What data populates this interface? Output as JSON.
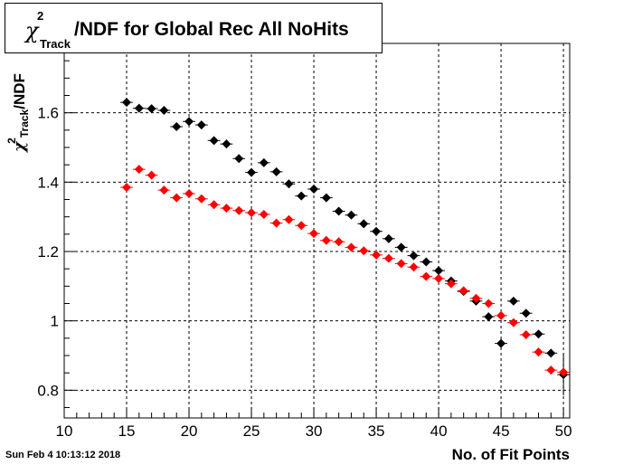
{
  "title": {
    "prefix_symbol": "χ",
    "superscript": "2",
    "subscript": "Track",
    "text": "/NDF for Global Rec All NoHits"
  },
  "axes": {
    "xlabel": "No. of Fit Points",
    "ylabel_symbol": "χ",
    "ylabel_superscript": "2",
    "ylabel_subscript": "Track",
    "ylabel_suffix": "/NDF"
  },
  "timestamp": "Sun Feb  4 10:13:12 2018",
  "colors": {
    "series_black": "#000000",
    "series_red": "#ff0000",
    "frame": "#000000",
    "grid": "#000000"
  },
  "chart_data": {
    "type": "scatter",
    "xlim": [
      10,
      50.5
    ],
    "ylim": [
      0.72,
      1.8
    ],
    "xticks": [
      10,
      15,
      20,
      25,
      30,
      35,
      40,
      45,
      50
    ],
    "yticks": [
      0.8,
      1,
      1.2,
      1.4,
      1.6
    ],
    "ytick_labels": [
      "0.8",
      "1",
      "1.2",
      "1.4",
      "1.6"
    ],
    "grid": true,
    "series": [
      {
        "color": "#000000",
        "marker": "diamond",
        "x": [
          15,
          16,
          17,
          18,
          19,
          20,
          21,
          22,
          23,
          24,
          25,
          26,
          27,
          28,
          29,
          30,
          31,
          32,
          33,
          34,
          35,
          36,
          37,
          38,
          39,
          40,
          41,
          42,
          43,
          44,
          45,
          46,
          47,
          48,
          49,
          50
        ],
        "y": [
          1.63,
          1.613,
          1.612,
          1.607,
          1.56,
          1.575,
          1.565,
          1.52,
          1.51,
          1.468,
          1.428,
          1.456,
          1.43,
          1.395,
          1.36,
          1.38,
          1.355,
          1.316,
          1.305,
          1.28,
          1.258,
          1.237,
          1.212,
          1.188,
          1.17,
          1.145,
          1.115,
          1.085,
          1.057,
          1.012,
          0.935,
          1.057,
          1.022,
          0.962,
          0.907,
          0.845
        ],
        "yerr": [
          0.01,
          0.01,
          0.01,
          0.01,
          0.01,
          0.01,
          0.01,
          0.01,
          0.01,
          0.01,
          0.01,
          0.01,
          0.01,
          0.01,
          0.01,
          0.01,
          0.01,
          0.01,
          0.01,
          0.01,
          0.01,
          0.01,
          0.01,
          0.01,
          0.01,
          0.01,
          0.01,
          0.01,
          0.01,
          0.01,
          0.01,
          0.01,
          0.01,
          0.01,
          0.01,
          0.06
        ]
      },
      {
        "color": "#ff0000",
        "marker": "diamond",
        "x": [
          15,
          16,
          17,
          18,
          19,
          20,
          21,
          22,
          23,
          24,
          25,
          26,
          27,
          28,
          29,
          30,
          31,
          32,
          33,
          34,
          35,
          36,
          37,
          38,
          39,
          40,
          41,
          42,
          43,
          44,
          45,
          46,
          47,
          48,
          49,
          50
        ],
        "y": [
          1.385,
          1.437,
          1.42,
          1.377,
          1.355,
          1.367,
          1.352,
          1.335,
          1.325,
          1.318,
          1.312,
          1.307,
          1.282,
          1.292,
          1.275,
          1.252,
          1.232,
          1.228,
          1.212,
          1.202,
          1.19,
          1.18,
          1.165,
          1.155,
          1.128,
          1.122,
          1.107,
          1.087,
          1.065,
          1.05,
          1.015,
          0.995,
          0.96,
          0.91,
          0.858,
          0.852
        ],
        "yerr": [
          0.005,
          0.005,
          0.005,
          0.005,
          0.005,
          0.005,
          0.005,
          0.005,
          0.005,
          0.005,
          0.005,
          0.005,
          0.005,
          0.005,
          0.005,
          0.005,
          0.005,
          0.005,
          0.005,
          0.005,
          0.005,
          0.005,
          0.005,
          0.005,
          0.005,
          0.005,
          0.005,
          0.005,
          0.005,
          0.005,
          0.005,
          0.005,
          0.005,
          0.005,
          0.005,
          0.01
        ]
      }
    ]
  }
}
